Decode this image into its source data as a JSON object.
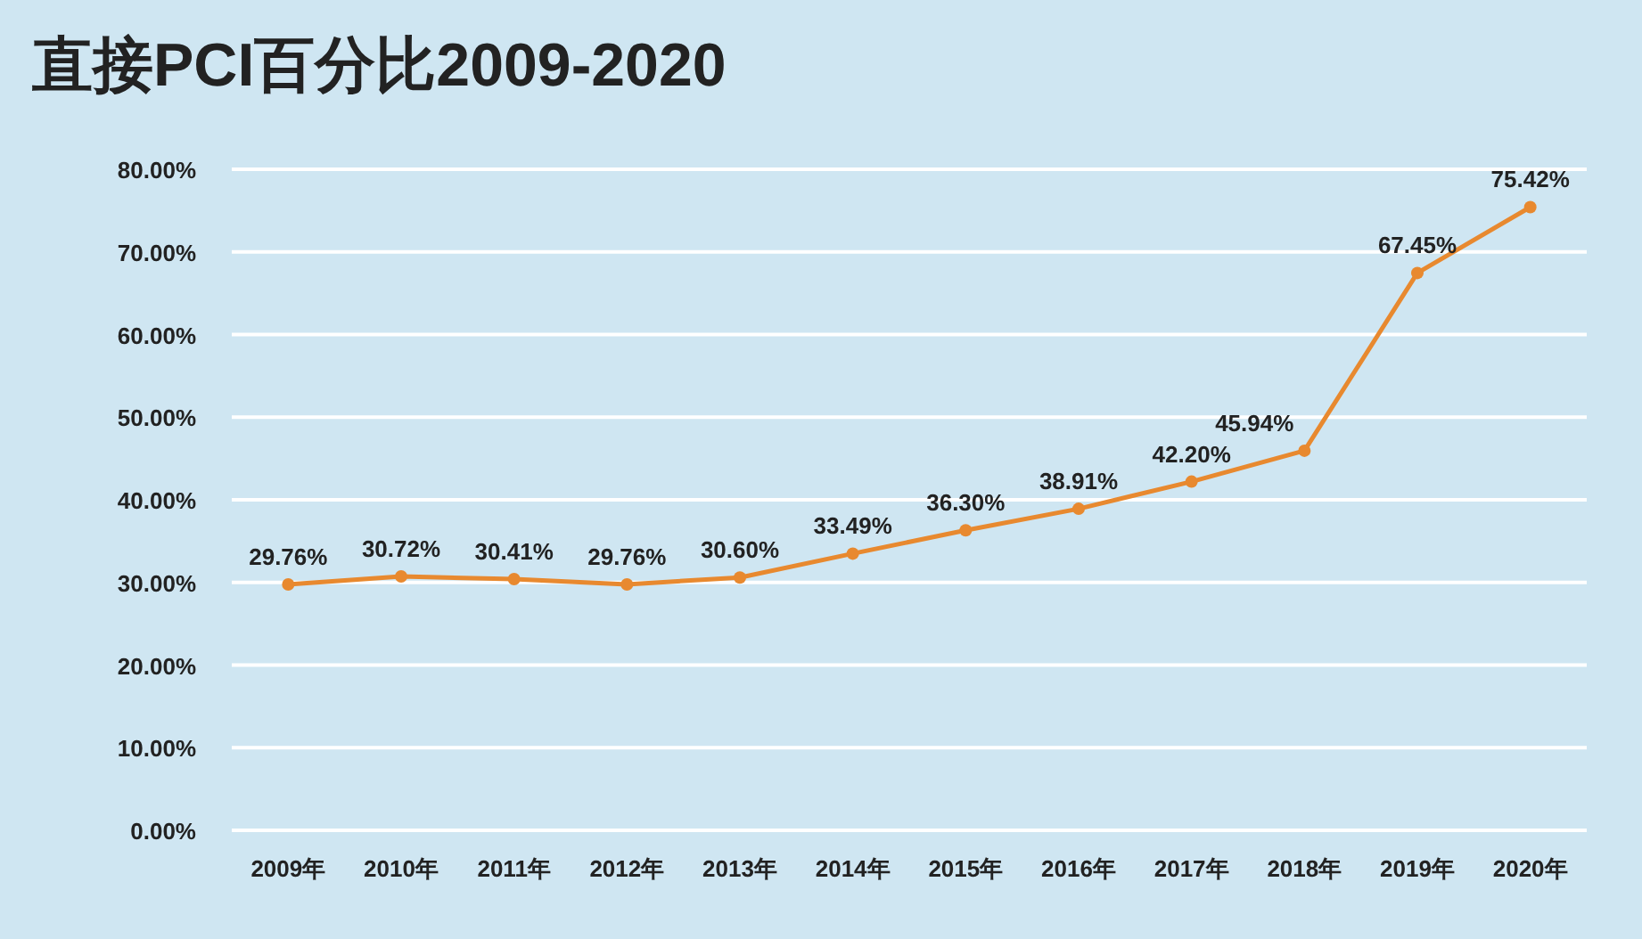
{
  "chart_data": {
    "type": "line",
    "title": "直接PCI百分比2009-2020",
    "categories": [
      "2009年",
      "2010年",
      "2011年",
      "2012年",
      "2013年",
      "2014年",
      "2015年",
      "2016年",
      "2017年",
      "2018年",
      "2019年",
      "2020年"
    ],
    "values": [
      29.76,
      30.72,
      30.41,
      29.76,
      30.6,
      33.49,
      36.3,
      38.91,
      42.2,
      45.94,
      67.45,
      75.42
    ],
    "value_labels": [
      "29.76%",
      "30.72%",
      "30.41%",
      "29.76%",
      "30.60%",
      "33.49%",
      "36.30%",
      "38.91%",
      "42.20%",
      "45.94%",
      "67.45%",
      "75.42%"
    ],
    "color": "#e8892f",
    "marker": "circle",
    "grid": "y",
    "ylim": [
      0,
      80
    ],
    "yticks": [
      {
        "value": 0,
        "label": "0.00%"
      },
      {
        "value": 10,
        "label": "10.00%"
      },
      {
        "value": 20,
        "label": "20.00%"
      },
      {
        "value": 30,
        "label": "30.00%"
      },
      {
        "value": 40,
        "label": "40.00%"
      },
      {
        "value": 50,
        "label": "50.00%"
      },
      {
        "value": 60,
        "label": "60.00%"
      },
      {
        "value": 70,
        "label": "70.00%"
      },
      {
        "value": 80,
        "label": "80.00%"
      }
    ]
  }
}
